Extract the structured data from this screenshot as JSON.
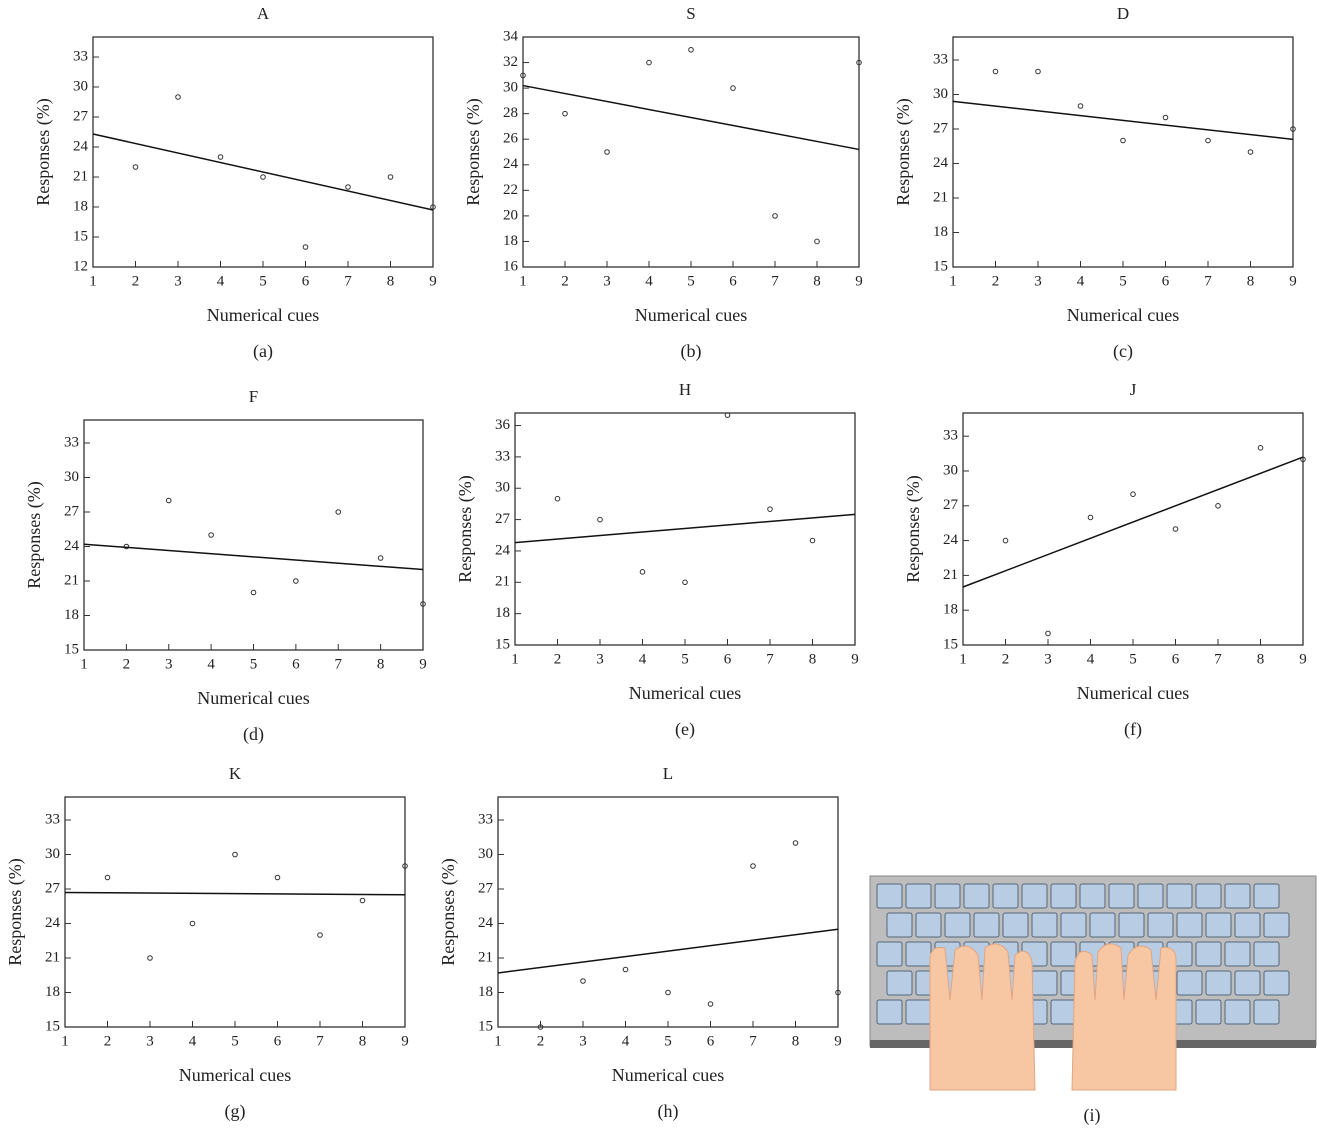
{
  "chart_data": [
    {
      "type": "scatter",
      "title": "A",
      "xlabel": "Numerical cues",
      "ylabel": "Responses (%)",
      "caption": "(a)",
      "x": [
        2,
        3,
        4,
        5,
        6,
        7,
        8,
        9
      ],
      "values": [
        22,
        29,
        23,
        21,
        14,
        20,
        21,
        18
      ],
      "fit": {
        "x": [
          1,
          9
        ],
        "y": [
          25.3,
          17.7
        ]
      },
      "xlim": [
        1,
        9
      ],
      "ylim": [
        12,
        35
      ],
      "xticks": [
        1,
        2,
        3,
        4,
        5,
        6,
        7,
        8,
        9
      ],
      "yticks": [
        12,
        15,
        18,
        21,
        24,
        27,
        30,
        33
      ]
    },
    {
      "type": "scatter",
      "title": "S",
      "xlabel": "Numerical cues",
      "ylabel": "Responses (%)",
      "caption": "(b)",
      "x": [
        1,
        2,
        3,
        4,
        5,
        6,
        7,
        8,
        9
      ],
      "values": [
        31,
        28,
        25,
        32,
        33,
        30,
        20,
        18,
        32
      ],
      "fit": {
        "x": [
          1,
          9
        ],
        "y": [
          30.2,
          25.2
        ]
      },
      "xlim": [
        1,
        9
      ],
      "ylim": [
        16,
        34
      ],
      "xticks": [
        1,
        2,
        3,
        4,
        5,
        6,
        7,
        8,
        9
      ],
      "yticks": [
        16,
        18,
        20,
        22,
        24,
        26,
        28,
        30,
        32,
        34
      ]
    },
    {
      "type": "scatter",
      "title": "D",
      "xlabel": "Numerical cues",
      "ylabel": "Responses (%)",
      "caption": "(c)",
      "x": [
        2,
        3,
        4,
        5,
        6,
        7,
        8,
        9
      ],
      "values": [
        32,
        32,
        29,
        26,
        28,
        26,
        25,
        27
      ],
      "fit": {
        "x": [
          1,
          9
        ],
        "y": [
          29.4,
          26.1
        ]
      },
      "xlim": [
        1,
        9
      ],
      "ylim": [
        15,
        35
      ],
      "xticks": [
        1,
        2,
        3,
        4,
        5,
        6,
        7,
        8,
        9
      ],
      "yticks": [
        15,
        18,
        21,
        24,
        27,
        30,
        33
      ]
    },
    {
      "type": "scatter",
      "title": "F",
      "xlabel": "Numerical cues",
      "ylabel": "Responses (%)",
      "caption": "(d)",
      "x": [
        2,
        3,
        4,
        5,
        6,
        7,
        8,
        9
      ],
      "values": [
        24,
        28,
        25,
        20,
        21,
        27,
        23,
        19
      ],
      "fit": {
        "x": [
          1,
          9
        ],
        "y": [
          24.2,
          22
        ]
      },
      "xlim": [
        1,
        9
      ],
      "ylim": [
        15,
        35
      ],
      "xticks": [
        1,
        2,
        3,
        4,
        5,
        6,
        7,
        8,
        9
      ],
      "yticks": [
        15,
        18,
        21,
        24,
        27,
        30,
        33
      ]
    },
    {
      "type": "scatter",
      "title": "H",
      "xlabel": "Numerical cues",
      "ylabel": "Responses (%)",
      "caption": "(e)",
      "x": [
        2,
        3,
        4,
        5,
        6,
        7,
        8
      ],
      "values": [
        29,
        27,
        22,
        21,
        37,
        28,
        25
      ],
      "fit": {
        "x": [
          1,
          9
        ],
        "y": [
          24.8,
          27.5
        ]
      },
      "xlim": [
        1,
        9
      ],
      "ylim": [
        15,
        37.2
      ],
      "xticks": [
        1,
        2,
        3,
        4,
        5,
        6,
        7,
        8,
        9
      ],
      "yticks": [
        15,
        18,
        21,
        24,
        27,
        30,
        33,
        36
      ]
    },
    {
      "type": "scatter",
      "title": "J",
      "xlabel": "Numerical cues",
      "ylabel": "Responses (%)",
      "caption": "(f)",
      "x": [
        2,
        3,
        4,
        5,
        6,
        7,
        8,
        9
      ],
      "values": [
        24,
        16,
        26,
        28,
        25,
        27,
        32,
        31
      ],
      "fit": {
        "x": [
          1,
          9
        ],
        "y": [
          20,
          31.2
        ]
      },
      "xlim": [
        1,
        9
      ],
      "ylim": [
        15,
        35
      ],
      "xticks": [
        1,
        2,
        3,
        4,
        5,
        6,
        7,
        8,
        9
      ],
      "yticks": [
        15,
        18,
        21,
        24,
        27,
        30,
        33
      ]
    },
    {
      "type": "scatter",
      "title": "K",
      "xlabel": "Numerical cues",
      "ylabel": "Responses (%)",
      "caption": "(g)",
      "x": [
        2,
        3,
        4,
        5,
        6,
        7,
        8,
        9
      ],
      "values": [
        28,
        21,
        24,
        30,
        28,
        23,
        26,
        29
      ],
      "fit": {
        "x": [
          1,
          9
        ],
        "y": [
          26.7,
          26.5
        ]
      },
      "xlim": [
        1,
        9
      ],
      "ylim": [
        15,
        35
      ],
      "xticks": [
        1,
        2,
        3,
        4,
        5,
        6,
        7,
        8,
        9
      ],
      "yticks": [
        15,
        18,
        21,
        24,
        27,
        30,
        33
      ]
    },
    {
      "type": "scatter",
      "title": "L",
      "xlabel": "Numerical cues",
      "ylabel": "Responses (%)",
      "caption": "(h)",
      "x": [
        2,
        3,
        4,
        5,
        6,
        7,
        8,
        9
      ],
      "values": [
        15,
        19,
        20,
        18,
        17,
        29,
        31,
        18
      ],
      "fit": {
        "x": [
          1,
          9
        ],
        "y": [
          19.7,
          23.5
        ]
      },
      "xlim": [
        1,
        9
      ],
      "ylim": [
        15,
        35
      ],
      "xticks": [
        1,
        2,
        3,
        4,
        5,
        6,
        7,
        8,
        9
      ],
      "yticks": [
        15,
        18,
        21,
        24,
        27,
        30,
        33
      ]
    }
  ],
  "keyboard_caption": "(i)"
}
